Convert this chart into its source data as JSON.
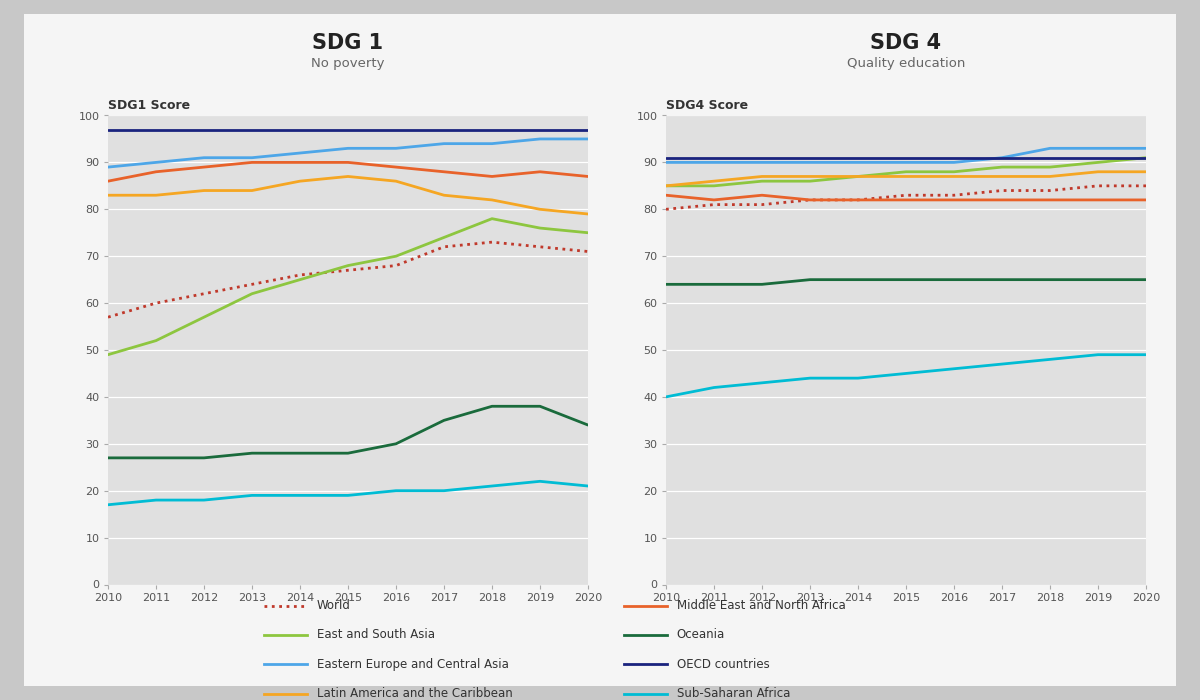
{
  "years": [
    2010,
    2011,
    2012,
    2013,
    2014,
    2015,
    2016,
    2017,
    2018,
    2019,
    2020
  ],
  "sdg1": {
    "title": "SDG 1",
    "subtitle": "No poverty",
    "ylabel": "SDG1 Score",
    "ylim": [
      0,
      100
    ],
    "series": {
      "World": [
        57,
        60,
        62,
        64,
        66,
        67,
        68,
        72,
        73,
        72,
        71
      ],
      "East and South Asia": [
        49,
        52,
        57,
        62,
        65,
        68,
        70,
        74,
        78,
        76,
        75
      ],
      "Eastern Europe and Central Asia": [
        89,
        90,
        91,
        91,
        92,
        93,
        93,
        94,
        94,
        95,
        95
      ],
      "Latin America and the Caribbean": [
        83,
        83,
        84,
        84,
        86,
        87,
        86,
        83,
        82,
        80,
        79
      ],
      "Middle East and North Africa": [
        86,
        88,
        89,
        90,
        90,
        90,
        89,
        88,
        87,
        88,
        87
      ],
      "Oceania": [
        27,
        27,
        27,
        28,
        28,
        28,
        30,
        35,
        38,
        38,
        34
      ],
      "OECD countries": [
        97,
        97,
        97,
        97,
        97,
        97,
        97,
        97,
        97,
        97,
        97
      ],
      "Sub-Saharan Africa": [
        17,
        18,
        18,
        19,
        19,
        19,
        20,
        20,
        21,
        22,
        21
      ]
    }
  },
  "sdg4": {
    "title": "SDG 4",
    "subtitle": "Quality education",
    "ylabel": "SDG4 Score",
    "ylim": [
      0,
      100
    ],
    "series": {
      "World": [
        80,
        81,
        81,
        82,
        82,
        83,
        83,
        84,
        84,
        85,
        85
      ],
      "East and South Asia": [
        85,
        85,
        86,
        86,
        87,
        88,
        88,
        89,
        89,
        90,
        91
      ],
      "Eastern Europe and Central Asia": [
        90,
        90,
        90,
        90,
        90,
        90,
        90,
        91,
        93,
        93,
        93
      ],
      "Latin America and the Caribbean": [
        85,
        86,
        87,
        87,
        87,
        87,
        87,
        87,
        87,
        88,
        88
      ],
      "Middle East and North Africa": [
        83,
        82,
        83,
        82,
        82,
        82,
        82,
        82,
        82,
        82,
        82
      ],
      "Oceania": [
        64,
        64,
        64,
        65,
        65,
        65,
        65,
        65,
        65,
        65,
        65
      ],
      "OECD countries": [
        91,
        91,
        91,
        91,
        91,
        91,
        91,
        91,
        91,
        91,
        91
      ],
      "Sub-Saharan Africa": [
        40,
        42,
        43,
        44,
        44,
        45,
        46,
        47,
        48,
        49,
        49
      ]
    }
  },
  "series_styles": {
    "World": {
      "color": "#c0392b",
      "linestyle": "dotted",
      "linewidth": 2.0
    },
    "East and South Asia": {
      "color": "#8dc63f",
      "linestyle": "solid",
      "linewidth": 2.0
    },
    "Eastern Europe and Central Asia": {
      "color": "#4da6e8",
      "linestyle": "solid",
      "linewidth": 2.0
    },
    "Latin America and the Caribbean": {
      "color": "#f5a623",
      "linestyle": "solid",
      "linewidth": 2.0
    },
    "Middle East and North Africa": {
      "color": "#e8622a",
      "linestyle": "solid",
      "linewidth": 2.0
    },
    "Oceania": {
      "color": "#1a6b3c",
      "linestyle": "solid",
      "linewidth": 2.0
    },
    "OECD countries": {
      "color": "#1a237e",
      "linestyle": "solid",
      "linewidth": 2.0
    },
    "Sub-Saharan Africa": {
      "color": "#00bcd4",
      "linestyle": "solid",
      "linewidth": 2.0
    }
  },
  "legend_order": [
    "World",
    "East and South Asia",
    "Eastern Europe and Central Asia",
    "Latin America and the Caribbean",
    "Middle East and North Africa",
    "Oceania",
    "OECD countries",
    "Sub-Saharan Africa"
  ],
  "plot_bg_color": "#e0e0e0",
  "panel_bg_color": "#f5f5f5",
  "outer_bg_color": "#c8c8c8"
}
